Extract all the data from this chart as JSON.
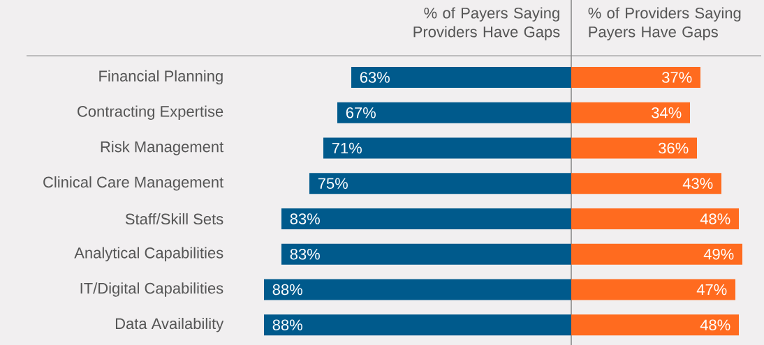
{
  "chart_data": [
    {
      "type": "bar",
      "orientation": "horizontal",
      "title": "% of Payers Saying Providers Have Gaps",
      "categories": [
        "Financial Planning",
        "Contracting Expertise",
        "Risk Management",
        "Clinical Care Management",
        "Staff/Skill Sets",
        "Analytical Capabilities",
        "IT/Digital Capabilities",
        "Data Availability"
      ],
      "values": [
        63,
        67,
        71,
        75,
        83,
        83,
        88,
        88
      ],
      "value_labels": [
        "63%",
        "67%",
        "71%",
        "75%",
        "83%",
        "83%",
        "88%",
        "88%"
      ],
      "color": "#005a8c",
      "tick_labels": "y"
    },
    {
      "type": "bar",
      "orientation": "horizontal",
      "title": "% of Providers Saying Payers Have Gaps",
      "categories": [
        null,
        null,
        null,
        null,
        null,
        null,
        null,
        null
      ],
      "values": [
        37,
        34,
        36,
        43,
        48,
        49,
        47,
        48
      ],
      "value_labels": [
        "37%",
        "34%",
        "36%",
        "43%",
        "48%",
        "49%",
        "47%",
        "48%"
      ],
      "color": "#ff6b1f",
      "tick_labels": false
    }
  ]
}
